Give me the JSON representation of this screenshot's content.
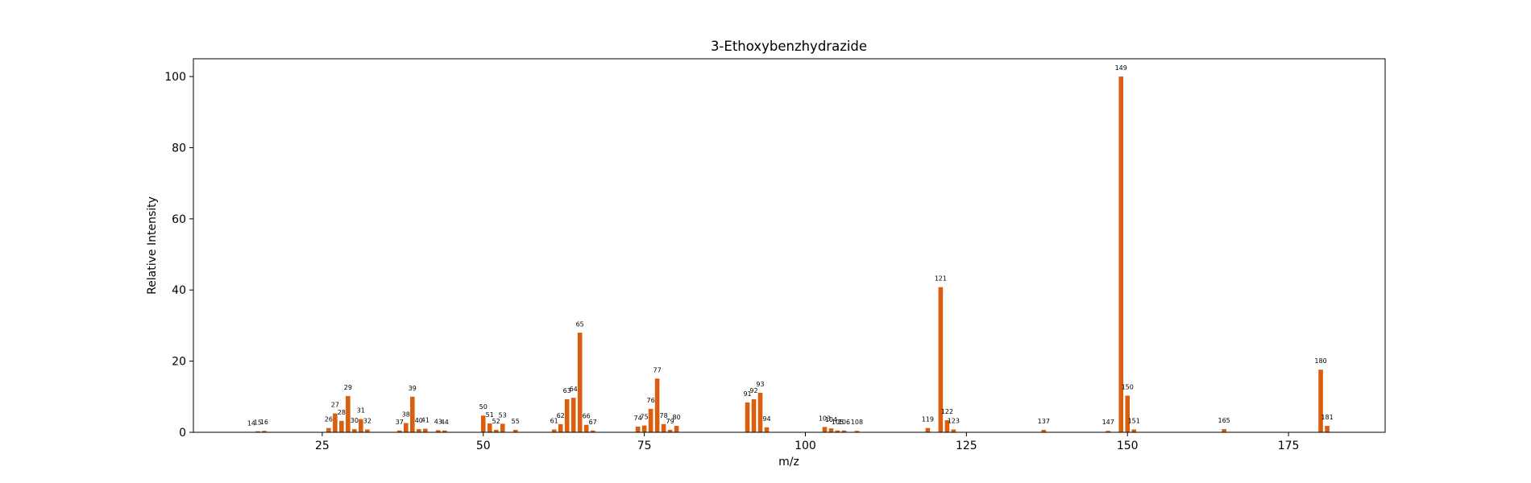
{
  "chart_data": {
    "type": "bar",
    "title": "3-Ethoxybenzhydrazide",
    "xlabel": "m/z",
    "ylabel": "Relative Intensity",
    "xlim": [
      5,
      190
    ],
    "ylim": [
      0,
      105
    ],
    "xticks": [
      25,
      50,
      75,
      100,
      125,
      150,
      175
    ],
    "yticks": [
      0,
      20,
      40,
      60,
      80,
      100
    ],
    "grid": false,
    "bar_color": "#d95f0e",
    "points": [
      {
        "x": 14,
        "y": 0.1
      },
      {
        "x": 15,
        "y": 0.3
      },
      {
        "x": 16,
        "y": 0.4
      },
      {
        "x": 26,
        "y": 1.2
      },
      {
        "x": 27,
        "y": 5.3
      },
      {
        "x": 28,
        "y": 3.2
      },
      {
        "x": 29,
        "y": 10.2
      },
      {
        "x": 30,
        "y": 0.9
      },
      {
        "x": 31,
        "y": 3.7
      },
      {
        "x": 32,
        "y": 0.8
      },
      {
        "x": 37,
        "y": 0.5
      },
      {
        "x": 38,
        "y": 2.6
      },
      {
        "x": 39,
        "y": 10.0
      },
      {
        "x": 40,
        "y": 0.9
      },
      {
        "x": 41,
        "y": 1.0
      },
      {
        "x": 43,
        "y": 0.6
      },
      {
        "x": 44,
        "y": 0.5
      },
      {
        "x": 50,
        "y": 4.7
      },
      {
        "x": 51,
        "y": 2.5
      },
      {
        "x": 52,
        "y": 0.7
      },
      {
        "x": 53,
        "y": 2.4
      },
      {
        "x": 55,
        "y": 0.7
      },
      {
        "x": 61,
        "y": 0.8
      },
      {
        "x": 62,
        "y": 2.3
      },
      {
        "x": 63,
        "y": 9.3
      },
      {
        "x": 64,
        "y": 9.7
      },
      {
        "x": 65,
        "y": 28.0
      },
      {
        "x": 66,
        "y": 2.1
      },
      {
        "x": 67,
        "y": 0.5
      },
      {
        "x": 74,
        "y": 1.6
      },
      {
        "x": 75,
        "y": 1.9
      },
      {
        "x": 76,
        "y": 6.6
      },
      {
        "x": 77,
        "y": 15.1
      },
      {
        "x": 78,
        "y": 2.3
      },
      {
        "x": 79,
        "y": 0.7
      },
      {
        "x": 80,
        "y": 1.8
      },
      {
        "x": 91,
        "y": 8.4
      },
      {
        "x": 92,
        "y": 9.3
      },
      {
        "x": 93,
        "y": 11.1
      },
      {
        "x": 94,
        "y": 1.4
      },
      {
        "x": 103,
        "y": 1.5
      },
      {
        "x": 104,
        "y": 1.1
      },
      {
        "x": 105,
        "y": 0.5
      },
      {
        "x": 106,
        "y": 0.5
      },
      {
        "x": 108,
        "y": 0.4
      },
      {
        "x": 119,
        "y": 1.2
      },
      {
        "x": 121,
        "y": 40.8
      },
      {
        "x": 122,
        "y": 3.4
      },
      {
        "x": 123,
        "y": 0.8
      },
      {
        "x": 137,
        "y": 0.7
      },
      {
        "x": 147,
        "y": 0.4
      },
      {
        "x": 149,
        "y": 100.0
      },
      {
        "x": 150,
        "y": 10.3
      },
      {
        "x": 151,
        "y": 0.8
      },
      {
        "x": 165,
        "y": 0.9
      },
      {
        "x": 180,
        "y": 17.6
      },
      {
        "x": 181,
        "y": 1.8
      }
    ]
  }
}
